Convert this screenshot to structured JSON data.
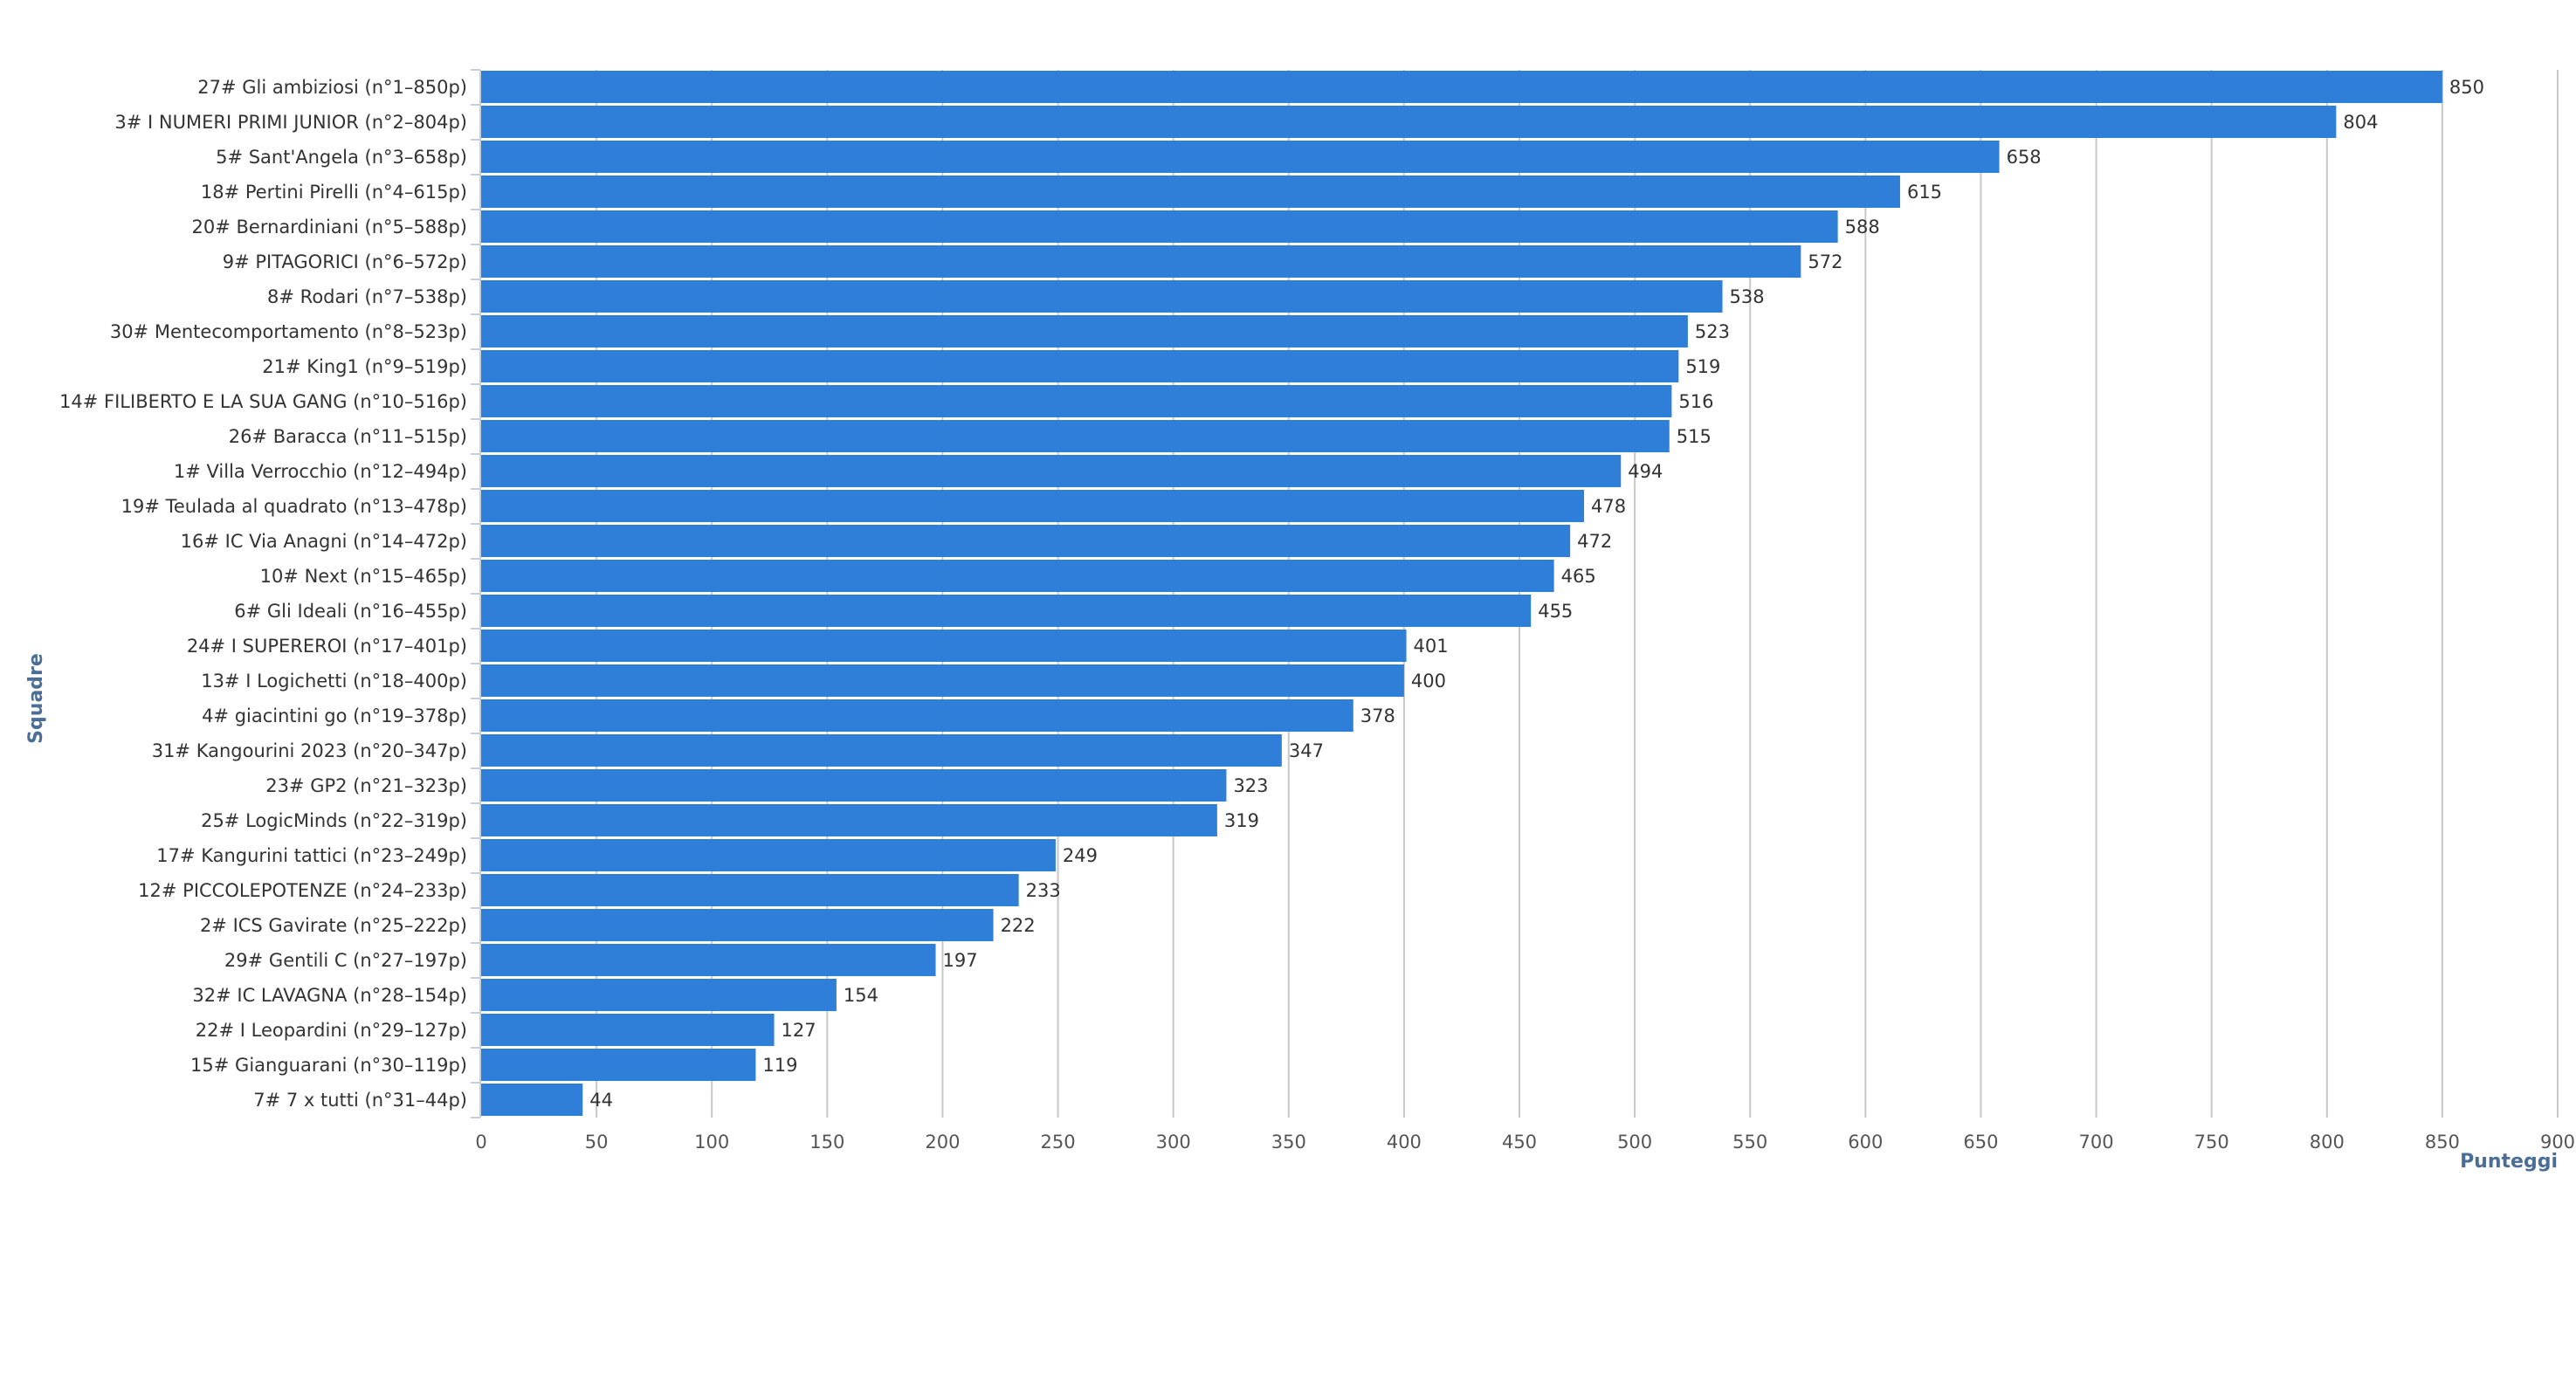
{
  "chart_data": {
    "type": "bar",
    "orientation": "horizontal",
    "title": "",
    "xlabel": "Punteggi",
    "ylabel": "Squadre",
    "xlim": [
      0,
      900
    ],
    "xticks": [
      0,
      50,
      100,
      150,
      200,
      250,
      300,
      350,
      400,
      450,
      500,
      550,
      600,
      650,
      700,
      750,
      800,
      850,
      900
    ],
    "grid": true,
    "legend": "none",
    "bar_color": "#2f7ed8",
    "categories": [
      "27# Gli ambiziosi (n°1–850p)",
      "3# I NUMERI PRIMI JUNIOR (n°2–804p)",
      "5# Sant'Angela (n°3–658p)",
      "18# Pertini Pirelli (n°4–615p)",
      "20# Bernardiniani (n°5–588p)",
      "9# PITAGORICI (n°6–572p)",
      "8# Rodari (n°7–538p)",
      "30# Mentecomportamento (n°8–523p)",
      "21# King1 (n°9–519p)",
      "14# FILIBERTO E LA SUA GANG (n°10–516p)",
      "26# Baracca (n°11–515p)",
      "1# Villa Verrocchio (n°12–494p)",
      "19# Teulada al quadrato (n°13–478p)",
      "16# IC Via Anagni (n°14–472p)",
      "10# Next (n°15–465p)",
      "6# Gli Ideali (n°16–455p)",
      "24# I SUPEREROI (n°17–401p)",
      "13# I Logichetti (n°18–400p)",
      "4# giacintini go (n°19–378p)",
      "31# Kangourini 2023 (n°20–347p)",
      "23# GP2 (n°21–323p)",
      "25# LogicMinds (n°22–319p)",
      "17# Kangurini tattici (n°23–249p)",
      "12# PICCOLEPOTENZE (n°24–233p)",
      "2# ICS Gavirate (n°25–222p)",
      "29# Gentili C (n°27–197p)",
      "32# IC LAVAGNA (n°28–154p)",
      "22# I Leopardini (n°29–127p)",
      "15# Gianguarani (n°30–119p)",
      "7# 7 x tutti (n°31–44p)"
    ],
    "values": [
      850,
      804,
      658,
      615,
      588,
      572,
      538,
      523,
      519,
      516,
      515,
      494,
      478,
      472,
      465,
      455,
      401,
      400,
      378,
      347,
      323,
      319,
      249,
      233,
      222,
      197,
      154,
      127,
      119,
      44
    ]
  }
}
